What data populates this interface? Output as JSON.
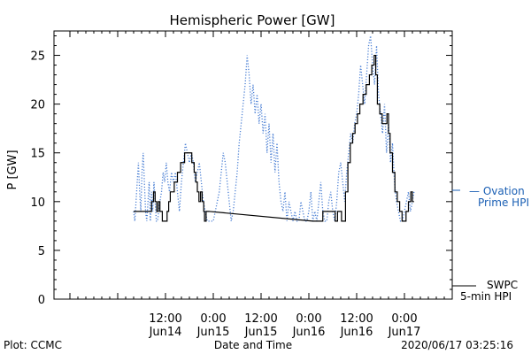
{
  "chart_data": {
    "type": "line",
    "title": "Hemispheric Power [GW]",
    "xlabel": "Date and Time",
    "ylabel": "P [GW]",
    "xlim_hours": [
      -16,
      84
    ],
    "ylim": [
      0,
      27.5
    ],
    "yticks": [
      0,
      5,
      10,
      15,
      20,
      25
    ],
    "yticks_labels": [
      "0",
      "5",
      "10",
      "15",
      "20",
      "25"
    ],
    "xticks_labels": [
      {
        "hour": 12,
        "time": "12:00",
        "day": "Jun14"
      },
      {
        "hour": 24,
        "time": "0:00",
        "day": "Jun15"
      },
      {
        "hour": 36,
        "time": "12:00",
        "day": "Jun15"
      },
      {
        "hour": 48,
        "time": "0:00",
        "day": "Jun16"
      },
      {
        "hour": 60,
        "time": "12:00",
        "day": "Jun16"
      },
      {
        "hour": 72,
        "time": "0:00",
        "day": "Jun17"
      }
    ],
    "legend_right": [
      {
        "name": "— Ovation",
        "color": "#1a5fb4"
      },
      {
        "name": "Prime HPI",
        "color": "#1a5fb4"
      },
      {
        "name": "SWPC",
        "color": "#000000"
      },
      {
        "name": "5-min HPI",
        "color": "#000000"
      }
    ],
    "footer": {
      "left": "Plot: CCMC",
      "center": "Date and Time",
      "right": "2020/06/17 03:25:16"
    },
    "series": [
      {
        "name": "SWPC 5-min HPI",
        "color": "#000000",
        "style": "solid",
        "points": [
          [
            4,
            9
          ],
          [
            5,
            9
          ],
          [
            5,
            9
          ],
          [
            8.5,
            9
          ],
          [
            8.5,
            10
          ],
          [
            9,
            10
          ],
          [
            9,
            11
          ],
          [
            9.4,
            11
          ],
          [
            9.4,
            10
          ],
          [
            9.8,
            10
          ],
          [
            9.8,
            9
          ],
          [
            10.2,
            9
          ],
          [
            10.2,
            10
          ],
          [
            10.6,
            10
          ],
          [
            10.6,
            9
          ],
          [
            11.2,
            9
          ],
          [
            11.2,
            8
          ],
          [
            12.4,
            8
          ],
          [
            12.4,
            9
          ],
          [
            12.8,
            9
          ],
          [
            12.8,
            10
          ],
          [
            13.2,
            10
          ],
          [
            13.2,
            11
          ],
          [
            14.2,
            11
          ],
          [
            14.2,
            12
          ],
          [
            15,
            12
          ],
          [
            15,
            13
          ],
          [
            15.8,
            13
          ],
          [
            15.8,
            14
          ],
          [
            16.8,
            14
          ],
          [
            16.8,
            15
          ],
          [
            18.6,
            15
          ],
          [
            18.6,
            14
          ],
          [
            19.2,
            14
          ],
          [
            19.2,
            13
          ],
          [
            19.6,
            13
          ],
          [
            19.6,
            12
          ],
          [
            20,
            12
          ],
          [
            20,
            11
          ],
          [
            20.4,
            11
          ],
          [
            20.4,
            10
          ],
          [
            20.8,
            10
          ],
          [
            20.8,
            11
          ],
          [
            21.2,
            11
          ],
          [
            21.2,
            10
          ],
          [
            21.6,
            10
          ],
          [
            21.6,
            9
          ],
          [
            21.8,
            9
          ],
          [
            21.8,
            8
          ],
          [
            22.2,
            8
          ],
          [
            22.2,
            9
          ],
          [
            22.8,
            9
          ],
          [
            49,
            8
          ],
          [
            51.5,
            8
          ],
          [
            51.5,
            9
          ],
          [
            54.6,
            9
          ],
          [
            54.6,
            8
          ],
          [
            55.2,
            8
          ],
          [
            55.2,
            9
          ],
          [
            56.2,
            9
          ],
          [
            56.2,
            8
          ],
          [
            57.2,
            8
          ],
          [
            57.2,
            11
          ],
          [
            57.8,
            11
          ],
          [
            57.8,
            14
          ],
          [
            58.4,
            14
          ],
          [
            58.4,
            16
          ],
          [
            59,
            16
          ],
          [
            59,
            17
          ],
          [
            59.6,
            17
          ],
          [
            59.6,
            18
          ],
          [
            60.2,
            18
          ],
          [
            60.2,
            19
          ],
          [
            60.8,
            19
          ],
          [
            60.8,
            20
          ],
          [
            61.6,
            20
          ],
          [
            61.6,
            21
          ],
          [
            62.4,
            21
          ],
          [
            62.4,
            22
          ],
          [
            63.2,
            22
          ],
          [
            63.2,
            23
          ],
          [
            63.8,
            23
          ],
          [
            63.8,
            24
          ],
          [
            64.4,
            24
          ],
          [
            64.4,
            25
          ],
          [
            64.8,
            25
          ],
          [
            64.8,
            23
          ],
          [
            65.2,
            23
          ],
          [
            65.2,
            20
          ],
          [
            65.8,
            20
          ],
          [
            65.8,
            19
          ],
          [
            66.4,
            19
          ],
          [
            66.4,
            18
          ],
          [
            67.6,
            18
          ],
          [
            67.6,
            19
          ],
          [
            68,
            19
          ],
          [
            68,
            17
          ],
          [
            68.4,
            17
          ],
          [
            68.4,
            15
          ],
          [
            69,
            15
          ],
          [
            69,
            13
          ],
          [
            69.6,
            13
          ],
          [
            69.6,
            11
          ],
          [
            70.2,
            11
          ],
          [
            70.2,
            10
          ],
          [
            70.8,
            10
          ],
          [
            70.8,
            9
          ],
          [
            71.4,
            9
          ],
          [
            71.4,
            8
          ],
          [
            72.4,
            8
          ],
          [
            72.4,
            9
          ],
          [
            73,
            9
          ],
          [
            73,
            10
          ],
          [
            73.6,
            10
          ],
          [
            73.6,
            11
          ],
          [
            74,
            11
          ],
          [
            74,
            10
          ],
          [
            74.4,
            10
          ]
        ]
      },
      {
        "name": "Ovation Prime HPI",
        "color": "#4a7fd4",
        "style": "dotted",
        "points": [
          [
            4,
            9
          ],
          [
            4.3,
            8
          ],
          [
            4.6,
            10
          ],
          [
            4.9,
            12
          ],
          [
            5.2,
            14
          ],
          [
            5.5,
            11
          ],
          [
            5.8,
            9
          ],
          [
            6.1,
            13
          ],
          [
            6.4,
            15
          ],
          [
            6.7,
            12
          ],
          [
            7,
            9
          ],
          [
            7.3,
            8
          ],
          [
            7.6,
            10
          ],
          [
            7.9,
            12
          ],
          [
            8.2,
            8
          ],
          [
            8.5,
            11
          ],
          [
            8.8,
            9
          ],
          [
            9.1,
            12
          ],
          [
            9.4,
            10
          ],
          [
            9.7,
            8
          ],
          [
            10,
            8
          ],
          [
            10.3,
            9
          ],
          [
            10.6,
            10
          ],
          [
            11,
            11
          ],
          [
            11.4,
            13
          ],
          [
            11.8,
            12
          ],
          [
            12.2,
            14
          ],
          [
            12.6,
            12
          ],
          [
            13,
            11
          ],
          [
            13.5,
            13
          ],
          [
            14,
            12
          ],
          [
            14.5,
            13
          ],
          [
            15,
            11
          ],
          [
            15.5,
            9
          ],
          [
            16,
            12
          ],
          [
            16.5,
            14
          ],
          [
            17,
            16
          ],
          [
            17.5,
            15
          ],
          [
            18,
            14
          ],
          [
            18.5,
            15
          ],
          [
            19,
            14
          ],
          [
            19.5,
            12
          ],
          [
            20,
            13
          ],
          [
            20.5,
            14
          ],
          [
            21,
            12
          ],
          [
            21.5,
            10
          ],
          [
            22,
            9
          ],
          [
            22.5,
            8
          ],
          [
            23,
            8
          ],
          [
            23.5,
            8
          ],
          [
            24,
            8
          ],
          [
            24.5,
            9
          ],
          [
            25,
            10
          ],
          [
            25.5,
            11
          ],
          [
            26,
            13
          ],
          [
            26.5,
            15
          ],
          [
            27,
            14
          ],
          [
            27.5,
            12
          ],
          [
            28,
            10
          ],
          [
            28.5,
            8
          ],
          [
            29,
            9
          ],
          [
            29.5,
            11
          ],
          [
            30,
            13
          ],
          [
            30.5,
            16
          ],
          [
            31,
            18
          ],
          [
            31.5,
            20
          ],
          [
            32,
            22
          ],
          [
            32.5,
            25
          ],
          [
            33,
            23
          ],
          [
            33.5,
            20
          ],
          [
            34,
            22
          ],
          [
            34.5,
            19
          ],
          [
            35,
            21
          ],
          [
            35.5,
            18
          ],
          [
            36,
            20
          ],
          [
            36.5,
            17
          ],
          [
            37,
            19
          ],
          [
            37.5,
            15
          ],
          [
            38,
            18
          ],
          [
            38.5,
            14
          ],
          [
            39,
            17
          ],
          [
            39.5,
            13
          ],
          [
            40,
            16
          ],
          [
            40.5,
            12
          ],
          [
            41,
            10
          ],
          [
            41.5,
            9
          ],
          [
            42,
            11
          ],
          [
            42.5,
            8
          ],
          [
            43,
            10
          ],
          [
            43.5,
            9
          ],
          [
            44,
            8
          ],
          [
            44.5,
            9
          ],
          [
            45,
            8
          ],
          [
            45.5,
            8
          ],
          [
            46,
            10
          ],
          [
            46.5,
            9
          ],
          [
            47,
            8
          ],
          [
            47.5,
            8
          ],
          [
            48,
            9
          ],
          [
            48.5,
            11
          ],
          [
            49,
            8
          ],
          [
            49.5,
            9
          ],
          [
            50,
            8
          ],
          [
            50.5,
            10
          ],
          [
            51,
            12
          ],
          [
            51.5,
            9
          ],
          [
            52,
            8
          ],
          [
            52.5,
            8
          ],
          [
            53,
            10
          ],
          [
            53.5,
            11
          ],
          [
            54,
            9
          ],
          [
            54.5,
            8
          ],
          [
            55,
            10
          ],
          [
            55.5,
            13
          ],
          [
            56,
            14
          ],
          [
            56.5,
            12
          ],
          [
            57,
            10
          ],
          [
            57.5,
            13
          ],
          [
            58,
            15
          ],
          [
            58.5,
            17
          ],
          [
            59,
            16
          ],
          [
            59.5,
            18
          ],
          [
            60,
            19
          ],
          [
            60.5,
            21
          ],
          [
            61,
            24
          ],
          [
            61.5,
            22
          ],
          [
            62,
            20
          ],
          [
            62.5,
            23
          ],
          [
            63,
            26
          ],
          [
            63.5,
            27
          ],
          [
            64,
            24
          ],
          [
            64.5,
            22
          ],
          [
            65,
            26
          ],
          [
            65.5,
            21
          ],
          [
            66,
            19
          ],
          [
            66.5,
            17
          ],
          [
            67,
            20
          ],
          [
            67.5,
            15
          ],
          [
            68,
            18
          ],
          [
            68.5,
            14
          ],
          [
            69,
            16
          ],
          [
            69.5,
            12
          ],
          [
            70,
            10
          ],
          [
            70.5,
            9
          ],
          [
            71,
            8
          ],
          [
            71.5,
            8
          ],
          [
            72,
            9
          ],
          [
            72.5,
            10
          ],
          [
            73,
            11
          ],
          [
            73.5,
            9
          ],
          [
            74,
            10
          ],
          [
            74.4,
            11
          ]
        ]
      }
    ],
    "grid": false
  }
}
